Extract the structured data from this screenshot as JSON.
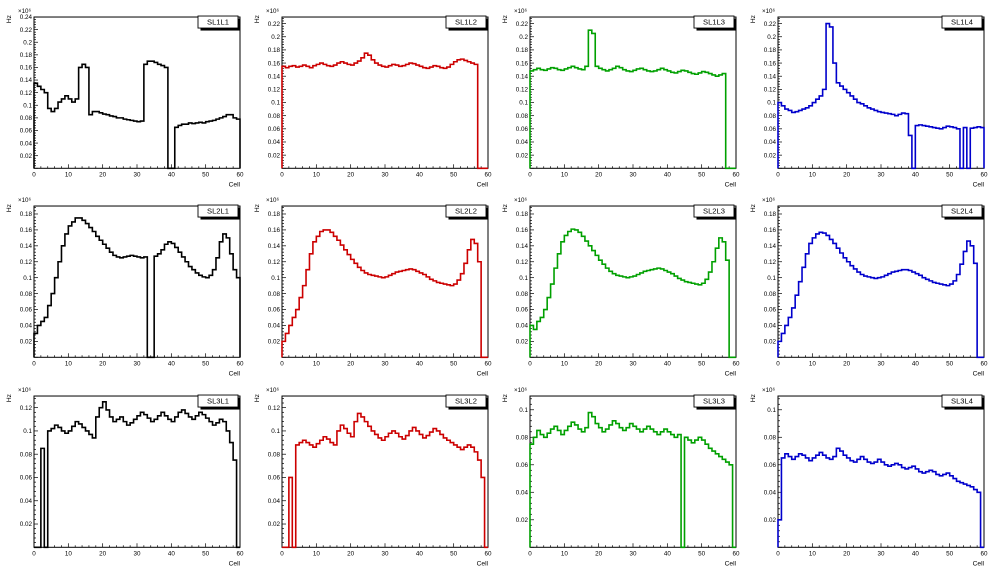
{
  "canvas": {
    "background": "#ffffff"
  },
  "axis_style": {
    "tick_color": "#000000",
    "frame_color": "#000000"
  },
  "chart_data": [
    {
      "type": "step-histogram",
      "title": "SL1L1",
      "color": "#000000",
      "xlabel": "Cell",
      "ylabel": "Hz",
      "exponent": "×10⁶",
      "xlim": [
        0,
        60
      ],
      "ylim": [
        0,
        0.24
      ],
      "ytick_step": 0.02,
      "xtick_step": 10,
      "values": [
        0.135,
        0.13,
        0.125,
        0.12,
        0.095,
        0.09,
        0.095,
        0.105,
        0.11,
        0.115,
        0.11,
        0.105,
        0.11,
        0.16,
        0.165,
        0.16,
        0.085,
        0.09,
        0.09,
        0.088,
        0.086,
        0.085,
        0.083,
        0.082,
        0.08,
        0.08,
        0.078,
        0.077,
        0.076,
        0.075,
        0.074,
        0.075,
        0.165,
        0.17,
        0.17,
        0.168,
        0.165,
        0.163,
        0.16,
        0.0,
        0.0,
        0.065,
        0.068,
        0.07,
        0.07,
        0.072,
        0.071,
        0.072,
        0.073,
        0.072,
        0.074,
        0.075,
        0.076,
        0.078,
        0.08,
        0.082,
        0.085,
        0.085,
        0.08,
        0.078
      ]
    },
    {
      "type": "step-histogram",
      "title": "SL1L2",
      "color": "#cc0000",
      "xlabel": "Cell",
      "ylabel": "Hz",
      "exponent": "×10⁶",
      "xlim": [
        0,
        60
      ],
      "ylim": [
        0,
        0.23
      ],
      "ytick_step": 0.02,
      "xtick_step": 10,
      "values": [
        0.155,
        0.153,
        0.155,
        0.156,
        0.154,
        0.155,
        0.157,
        0.155,
        0.153,
        0.156,
        0.158,
        0.16,
        0.158,
        0.156,
        0.155,
        0.157,
        0.16,
        0.162,
        0.16,
        0.158,
        0.157,
        0.16,
        0.163,
        0.168,
        0.175,
        0.172,
        0.165,
        0.16,
        0.157,
        0.155,
        0.154,
        0.156,
        0.158,
        0.157,
        0.155,
        0.156,
        0.158,
        0.16,
        0.159,
        0.157,
        0.155,
        0.153,
        0.152,
        0.154,
        0.156,
        0.155,
        0.153,
        0.152,
        0.154,
        0.158,
        0.162,
        0.165,
        0.166,
        0.164,
        0.162,
        0.16,
        0.158,
        0.0,
        0.0,
        0.0
      ]
    },
    {
      "type": "step-histogram",
      "title": "SL1L3",
      "color": "#00a000",
      "xlabel": "Cell",
      "ylabel": "Hz",
      "exponent": "×10⁶",
      "xlim": [
        0,
        60
      ],
      "ylim": [
        0,
        0.23
      ],
      "ytick_step": 0.02,
      "xtick_step": 10,
      "values": [
        0.148,
        0.15,
        0.152,
        0.15,
        0.149,
        0.151,
        0.153,
        0.152,
        0.15,
        0.149,
        0.151,
        0.153,
        0.155,
        0.153,
        0.151,
        0.15,
        0.155,
        0.21,
        0.205,
        0.155,
        0.152,
        0.15,
        0.148,
        0.15,
        0.152,
        0.155,
        0.153,
        0.15,
        0.148,
        0.147,
        0.149,
        0.151,
        0.152,
        0.15,
        0.148,
        0.147,
        0.148,
        0.15,
        0.152,
        0.15,
        0.148,
        0.146,
        0.145,
        0.147,
        0.149,
        0.148,
        0.146,
        0.144,
        0.143,
        0.145,
        0.147,
        0.146,
        0.144,
        0.142,
        0.14,
        0.142,
        0.144,
        0.0,
        0.0,
        0.0
      ]
    },
    {
      "type": "step-histogram",
      "title": "SL1L4",
      "color": "#0000cc",
      "xlabel": "Cell",
      "ylabel": "Hz",
      "exponent": "×10⁶",
      "xlim": [
        0,
        60
      ],
      "ylim": [
        0,
        0.23
      ],
      "ytick_step": 0.02,
      "xtick_step": 10,
      "values": [
        0.1,
        0.095,
        0.09,
        0.088,
        0.085,
        0.086,
        0.088,
        0.09,
        0.092,
        0.095,
        0.1,
        0.105,
        0.11,
        0.12,
        0.22,
        0.215,
        0.16,
        0.13,
        0.125,
        0.12,
        0.115,
        0.11,
        0.105,
        0.1,
        0.098,
        0.095,
        0.092,
        0.09,
        0.088,
        0.086,
        0.085,
        0.084,
        0.083,
        0.082,
        0.08,
        0.082,
        0.084,
        0.083,
        0.05,
        0.0,
        0.065,
        0.066,
        0.065,
        0.064,
        0.063,
        0.062,
        0.061,
        0.06,
        0.062,
        0.064,
        0.063,
        0.062,
        0.06,
        0.0,
        0.062,
        0.0,
        0.061,
        0.062,
        0.063,
        0.062
      ]
    },
    {
      "type": "step-histogram",
      "title": "SL2L1",
      "color": "#000000",
      "xlabel": "Cell",
      "ylabel": "Hz",
      "exponent": "×10⁶",
      "xlim": [
        0,
        60
      ],
      "ylim": [
        0,
        0.19
      ],
      "ytick_step": 0.02,
      "xtick_step": 10,
      "values": [
        0.03,
        0.04,
        0.045,
        0.05,
        0.065,
        0.08,
        0.1,
        0.12,
        0.14,
        0.155,
        0.165,
        0.17,
        0.175,
        0.175,
        0.172,
        0.168,
        0.163,
        0.158,
        0.152,
        0.147,
        0.142,
        0.137,
        0.132,
        0.128,
        0.126,
        0.125,
        0.126,
        0.127,
        0.128,
        0.127,
        0.126,
        0.125,
        0.126,
        0.0,
        0.0,
        0.127,
        0.13,
        0.135,
        0.142,
        0.145,
        0.143,
        0.138,
        0.132,
        0.126,
        0.12,
        0.114,
        0.11,
        0.106,
        0.103,
        0.101,
        0.1,
        0.103,
        0.11,
        0.125,
        0.145,
        0.155,
        0.15,
        0.13,
        0.11,
        0.1
      ]
    },
    {
      "type": "step-histogram",
      "title": "SL2L2",
      "color": "#cc0000",
      "xlabel": "Cell",
      "ylabel": "Hz",
      "exponent": "×10⁶",
      "xlim": [
        0,
        60
      ],
      "ylim": [
        0,
        0.19
      ],
      "ytick_step": 0.02,
      "xtick_step": 10,
      "values": [
        0.02,
        0.03,
        0.04,
        0.05,
        0.06,
        0.075,
        0.09,
        0.11,
        0.13,
        0.145,
        0.152,
        0.158,
        0.16,
        0.16,
        0.157,
        0.152,
        0.147,
        0.141,
        0.135,
        0.129,
        0.123,
        0.118,
        0.113,
        0.109,
        0.106,
        0.104,
        0.103,
        0.102,
        0.101,
        0.1,
        0.101,
        0.103,
        0.105,
        0.107,
        0.108,
        0.109,
        0.11,
        0.111,
        0.11,
        0.108,
        0.106,
        0.104,
        0.101,
        0.098,
        0.096,
        0.094,
        0.093,
        0.092,
        0.091,
        0.09,
        0.092,
        0.097,
        0.105,
        0.118,
        0.135,
        0.148,
        0.143,
        0.12,
        0.0,
        0.0
      ]
    },
    {
      "type": "step-histogram",
      "title": "SL2L3",
      "color": "#00a000",
      "xlabel": "Cell",
      "ylabel": "Hz",
      "exponent": "×10⁶",
      "xlim": [
        0,
        60
      ],
      "ylim": [
        0,
        0.19
      ],
      "ytick_step": 0.02,
      "xtick_step": 10,
      "values": [
        0.04,
        0.035,
        0.045,
        0.05,
        0.06,
        0.075,
        0.092,
        0.112,
        0.13,
        0.145,
        0.153,
        0.158,
        0.161,
        0.16,
        0.157,
        0.152,
        0.146,
        0.14,
        0.134,
        0.128,
        0.122,
        0.117,
        0.112,
        0.108,
        0.105,
        0.103,
        0.102,
        0.101,
        0.1,
        0.101,
        0.102,
        0.104,
        0.106,
        0.108,
        0.109,
        0.11,
        0.111,
        0.112,
        0.111,
        0.109,
        0.107,
        0.105,
        0.102,
        0.099,
        0.097,
        0.095,
        0.094,
        0.093,
        0.092,
        0.091,
        0.093,
        0.098,
        0.107,
        0.12,
        0.137,
        0.15,
        0.145,
        0.122,
        0.0,
        0.0
      ]
    },
    {
      "type": "step-histogram",
      "title": "SL2L4",
      "color": "#0000cc",
      "xlabel": "Cell",
      "ylabel": "Hz",
      "exponent": "×10⁶",
      "xlim": [
        0,
        60
      ],
      "ylim": [
        0,
        0.19
      ],
      "ytick_step": 0.02,
      "xtick_step": 10,
      "values": [
        0.02,
        0.03,
        0.04,
        0.05,
        0.062,
        0.078,
        0.095,
        0.113,
        0.13,
        0.143,
        0.15,
        0.155,
        0.157,
        0.156,
        0.153,
        0.148,
        0.143,
        0.137,
        0.131,
        0.125,
        0.12,
        0.115,
        0.111,
        0.107,
        0.104,
        0.102,
        0.101,
        0.1,
        0.099,
        0.1,
        0.101,
        0.103,
        0.105,
        0.107,
        0.108,
        0.109,
        0.11,
        0.11,
        0.109,
        0.107,
        0.105,
        0.103,
        0.1,
        0.098,
        0.096,
        0.094,
        0.093,
        0.092,
        0.091,
        0.09,
        0.092,
        0.096,
        0.104,
        0.117,
        0.133,
        0.146,
        0.14,
        0.118,
        0.0,
        0.0
      ]
    },
    {
      "type": "step-histogram",
      "title": "SL3L1",
      "color": "#000000",
      "xlabel": "Cell",
      "ylabel": "Hz",
      "exponent": "×10⁶",
      "xlim": [
        0,
        60
      ],
      "ylim": [
        0,
        0.13
      ],
      "ytick_step": 0.02,
      "xtick_step": 10,
      "values": [
        0.0,
        0.0,
        0.085,
        0.0,
        0.1,
        0.102,
        0.105,
        0.103,
        0.1,
        0.098,
        0.1,
        0.104,
        0.108,
        0.106,
        0.103,
        0.1,
        0.097,
        0.094,
        0.112,
        0.12,
        0.125,
        0.118,
        0.112,
        0.108,
        0.11,
        0.112,
        0.108,
        0.105,
        0.107,
        0.11,
        0.113,
        0.116,
        0.114,
        0.111,
        0.108,
        0.11,
        0.113,
        0.116,
        0.113,
        0.11,
        0.108,
        0.112,
        0.116,
        0.118,
        0.115,
        0.112,
        0.11,
        0.113,
        0.116,
        0.114,
        0.111,
        0.108,
        0.105,
        0.107,
        0.11,
        0.108,
        0.1,
        0.09,
        0.075,
        0.0
      ]
    },
    {
      "type": "step-histogram",
      "title": "SL3L2",
      "color": "#cc0000",
      "xlabel": "Cell",
      "ylabel": "Hz",
      "exponent": "×10⁶",
      "xlim": [
        0,
        60
      ],
      "ylim": [
        0,
        0.13
      ],
      "ytick_step": 0.02,
      "xtick_step": 10,
      "values": [
        0.0,
        0.0,
        0.06,
        0.0,
        0.088,
        0.09,
        0.092,
        0.09,
        0.088,
        0.086,
        0.089,
        0.092,
        0.095,
        0.093,
        0.09,
        0.088,
        0.1,
        0.105,
        0.102,
        0.098,
        0.095,
        0.108,
        0.115,
        0.112,
        0.108,
        0.104,
        0.1,
        0.097,
        0.094,
        0.092,
        0.095,
        0.098,
        0.1,
        0.098,
        0.095,
        0.093,
        0.096,
        0.1,
        0.103,
        0.1,
        0.097,
        0.094,
        0.096,
        0.099,
        0.102,
        0.1,
        0.097,
        0.094,
        0.092,
        0.09,
        0.088,
        0.086,
        0.084,
        0.086,
        0.088,
        0.086,
        0.082,
        0.075,
        0.06,
        0.0
      ]
    },
    {
      "type": "step-histogram",
      "title": "SL3L3",
      "color": "#00a000",
      "xlabel": "Cell",
      "ylabel": "Hz",
      "exponent": "×10⁶",
      "xlim": [
        0,
        60
      ],
      "ylim": [
        0,
        0.11
      ],
      "ytick_step": 0.02,
      "xtick_step": 10,
      "values": [
        0.075,
        0.08,
        0.085,
        0.082,
        0.08,
        0.083,
        0.086,
        0.088,
        0.085,
        0.082,
        0.085,
        0.088,
        0.091,
        0.089,
        0.086,
        0.084,
        0.087,
        0.098,
        0.095,
        0.09,
        0.087,
        0.084,
        0.086,
        0.089,
        0.092,
        0.09,
        0.087,
        0.085,
        0.087,
        0.09,
        0.088,
        0.086,
        0.084,
        0.086,
        0.088,
        0.086,
        0.084,
        0.082,
        0.084,
        0.086,
        0.084,
        0.082,
        0.08,
        0.082,
        0.0,
        0.08,
        0.078,
        0.076,
        0.078,
        0.08,
        0.078,
        0.075,
        0.072,
        0.07,
        0.068,
        0.066,
        0.064,
        0.062,
        0.06,
        0.0
      ]
    },
    {
      "type": "step-histogram",
      "title": "SL3L4",
      "color": "#0000cc",
      "xlabel": "Cell",
      "ylabel": "Hz",
      "exponent": "×10⁶",
      "xlim": [
        0,
        60
      ],
      "ylim": [
        0,
        0.11
      ],
      "ytick_step": 0.02,
      "xtick_step": 10,
      "values": [
        0.02,
        0.065,
        0.068,
        0.066,
        0.064,
        0.066,
        0.068,
        0.067,
        0.065,
        0.063,
        0.065,
        0.067,
        0.069,
        0.067,
        0.065,
        0.064,
        0.066,
        0.072,
        0.07,
        0.067,
        0.065,
        0.063,
        0.062,
        0.064,
        0.066,
        0.064,
        0.062,
        0.061,
        0.062,
        0.064,
        0.062,
        0.06,
        0.059,
        0.06,
        0.061,
        0.06,
        0.058,
        0.057,
        0.058,
        0.059,
        0.057,
        0.055,
        0.054,
        0.055,
        0.056,
        0.055,
        0.053,
        0.052,
        0.053,
        0.054,
        0.052,
        0.05,
        0.048,
        0.047,
        0.046,
        0.045,
        0.044,
        0.042,
        0.04,
        0.0
      ]
    }
  ]
}
